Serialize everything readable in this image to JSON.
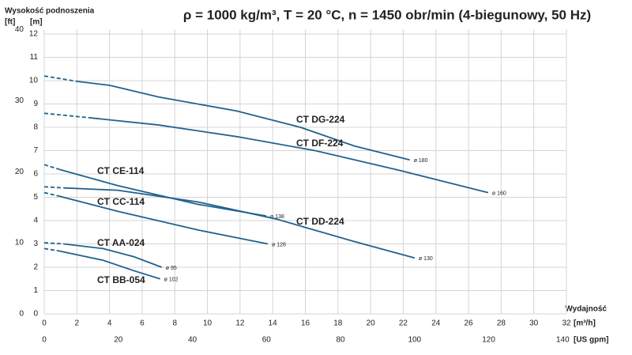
{
  "chart_data": {
    "type": "line",
    "title": "ρ = 1000 kg/m³, T = 20 °C, n = 1450 obr/min (4-biegunowy, 50 Hz)",
    "y_label": "Wysokość podnoszenia",
    "y2_unit": "[ft]",
    "y_unit": "[m]",
    "x_label": "Wydajność",
    "x_unit": "[m³/h]",
    "x2_unit": "[US gpm]",
    "xlim": [
      0,
      32
    ],
    "xticks": [
      0,
      2,
      4,
      6,
      8,
      10,
      12,
      14,
      16,
      18,
      20,
      22,
      24,
      26,
      28,
      30,
      32
    ],
    "x2lim": [
      0,
      141
    ],
    "x2ticks": [
      0,
      20,
      40,
      60,
      80,
      100,
      120,
      140
    ],
    "ylim": [
      0,
      12.19
    ],
    "yticks": [
      0,
      1,
      2,
      3,
      4,
      5,
      6,
      7,
      8,
      9,
      10,
      11,
      12
    ],
    "y2lim": [
      0,
      40
    ],
    "y2ticks": [
      0,
      10,
      20,
      30,
      40
    ],
    "grid": true,
    "dashed_points": 2,
    "series": [
      {
        "name": "CT DG-224",
        "diameter": "ø 180",
        "color": "#21628e",
        "x": [
          0,
          2,
          4,
          7,
          11.8,
          15.7,
          19,
          22.4
        ],
        "values": [
          10.2,
          9.97,
          9.8,
          9.3,
          8.7,
          8.0,
          7.2,
          6.6
        ]
      },
      {
        "name": "CT DF-224",
        "diameter": "ø 160",
        "color": "#21628e",
        "x": [
          0,
          2.9,
          7,
          11.8,
          16.6,
          21.5,
          27.2
        ],
        "values": [
          8.6,
          8.4,
          8.1,
          7.6,
          7.0,
          6.2,
          5.2
        ]
      },
      {
        "name": "CT CE-114",
        "diameter": "ø 138",
        "color": "#21628e",
        "x": [
          0,
          0.9,
          4.5,
          9.4,
          13.6
        ],
        "values": [
          6.4,
          6.2,
          5.5,
          4.7,
          4.2
        ]
      },
      {
        "name": "CT DD-224",
        "diameter": "ø 130",
        "color": "#21628e",
        "x": [
          0,
          1.2,
          4.5,
          9.4,
          14.2,
          19,
          22.7
        ],
        "values": [
          5.45,
          5.4,
          5.3,
          4.8,
          4.07,
          3.1,
          2.4
        ]
      },
      {
        "name": "CT CC-114",
        "diameter": "ø 128",
        "color": "#21628e",
        "x": [
          0,
          0.9,
          4.5,
          9.4,
          13.7
        ],
        "values": [
          5.2,
          5.05,
          4.4,
          3.6,
          3.0
        ]
      },
      {
        "name": "CT AA-024",
        "diameter": "ø 95",
        "color": "#21628e",
        "x": [
          0,
          1.2,
          3.6,
          5.5,
          7.2
        ],
        "values": [
          3.05,
          3.0,
          2.8,
          2.45,
          2.0
        ]
      },
      {
        "name": "CT BB-054",
        "diameter": "ø 102",
        "color": "#21628e",
        "x": [
          0,
          0.9,
          3.6,
          5.5,
          7.1
        ],
        "values": [
          2.8,
          2.7,
          2.3,
          1.85,
          1.5
        ]
      }
    ]
  }
}
